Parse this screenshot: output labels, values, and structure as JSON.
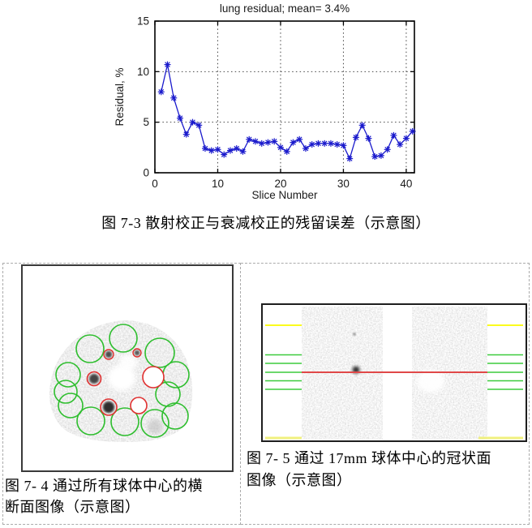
{
  "figures": {
    "f73": {
      "caption": "图 7-3 散射校正与衰减校正的残留误差（示意图）"
    },
    "f74": {
      "caption_line1": "图 7- 4 通过所有球体中心的横",
      "caption_line2": "断面图像（示意图）"
    },
    "f75": {
      "caption_line1": "图 7- 5 通过 17mm 球体中心的冠状面",
      "caption_line2": "图像（示意图）"
    }
  },
  "colors": {
    "plot_blue": "#1a1acc",
    "circle_green": "#2ebe2e",
    "circle_red": "#e03030",
    "line_yellow": "#fbfb1e",
    "line_yellow_pale": "#f0f07e",
    "line_green": "#3ccb3c",
    "line_red": "#e04848",
    "grid_gray": "#444444"
  },
  "chart_data": {
    "type": "line",
    "title": "lung residual; mean= 3.4%",
    "xlabel": "Slice Number",
    "ylabel": "Residual, %",
    "x": [
      1,
      2,
      3,
      4,
      5,
      6,
      7,
      8,
      9,
      10,
      11,
      12,
      13,
      14,
      15,
      16,
      17,
      18,
      19,
      20,
      21,
      22,
      23,
      24,
      25,
      26,
      27,
      28,
      29,
      30,
      31,
      32,
      33,
      34,
      35,
      36,
      37,
      38,
      39,
      40,
      41
    ],
    "values": [
      8.0,
      10.7,
      7.4,
      5.4,
      3.8,
      5.0,
      4.7,
      2.4,
      2.2,
      2.3,
      1.8,
      2.2,
      2.4,
      2.1,
      3.3,
      3.1,
      2.9,
      3.0,
      3.1,
      2.5,
      2.1,
      3.0,
      3.3,
      2.4,
      2.8,
      2.9,
      2.9,
      2.9,
      2.8,
      2.7,
      1.4,
      3.5,
      4.7,
      3.4,
      1.6,
      1.7,
      2.3,
      3.7,
      2.8,
      3.4,
      4.1
    ],
    "marker": "*",
    "xlim": [
      0,
      41.3
    ],
    "ylim": [
      0,
      15
    ],
    "xticks": [
      0,
      10,
      20,
      30,
      40
    ],
    "yticks": [
      0,
      5,
      10,
      15
    ],
    "grid": "on",
    "legend": "none"
  }
}
